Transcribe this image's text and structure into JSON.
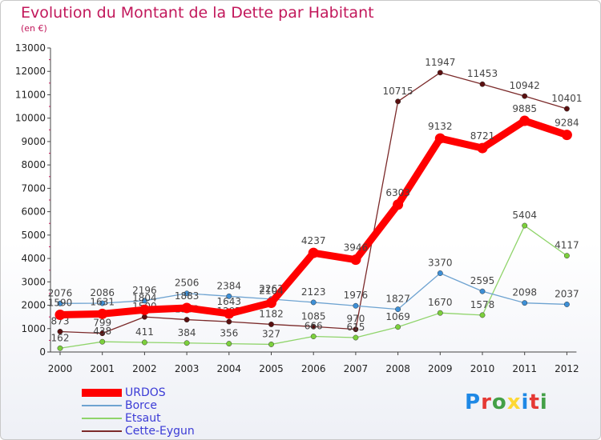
{
  "title": "Evolution du Montant de la Dette par Habitant",
  "subtitle": "(en €)",
  "logo": {
    "text": "Proxiti",
    "letter_colors": [
      "#1e88e5",
      "#e53935",
      "#43a047",
      "#fdd835",
      "#1e88e5",
      "#e53935",
      "#43a047"
    ]
  },
  "chart_data": {
    "type": "line",
    "x": [
      "2000",
      "2001",
      "2002",
      "2003",
      "2004",
      "2005",
      "2006",
      "2007",
      "2008",
      "2009",
      "2010",
      "2011",
      "2012"
    ],
    "y_ticks": [
      "0",
      "1000",
      "2000",
      "3000",
      "4000",
      "5000",
      "6000",
      "7000",
      "8000",
      "9000",
      "10000",
      "11000",
      "12000",
      "13000"
    ],
    "ylim": [
      0,
      13000
    ],
    "grid": false,
    "legend_position": "bottom-left",
    "series": [
      {
        "name": "Cette-Eygun",
        "color": "#7b2a2a",
        "point_color": "#5a1010",
        "values": [
          873,
          799,
          1500,
          1383,
          1297,
          1182,
          1085,
          970,
          10715,
          11947,
          11453,
          10942,
          10401
        ],
        "labels": [
          "873",
          "799",
          "1500",
          "1383",
          "1297",
          "1182",
          "1085",
          "970",
          "10715",
          "11947",
          "11453",
          "10942",
          "10401"
        ]
      },
      {
        "name": "Etsaut",
        "color": "#8fd46a",
        "point_color": "#7cd03c",
        "values": [
          162,
          438,
          411,
          384,
          356,
          327,
          666,
          615,
          1069,
          1670,
          1578,
          5404,
          4117
        ],
        "labels": [
          "162",
          "438",
          "411",
          "384",
          "356",
          "327",
          "666",
          "615",
          "1069",
          "1670",
          "1578",
          "5404",
          "4117"
        ]
      },
      {
        "name": "Borce",
        "color": "#6ea3d1",
        "point_color": "#3d8fd6",
        "values": [
          2076,
          2086,
          2196,
          2506,
          2384,
          2263,
          2123,
          1976,
          1827,
          3370,
          2595,
          2098,
          2037
        ],
        "labels": [
          "2076",
          "2086",
          "2196",
          "2506",
          "2384",
          "2263",
          "2123",
          "1976",
          "1827",
          "3370",
          "2595",
          "2098",
          "2037"
        ]
      },
      {
        "name": "URDOS",
        "color": "#ff0000",
        "point_color": "#ff0000",
        "values": [
          1590,
          1631,
          1804,
          1883,
          1643,
          2104,
          4237,
          3946,
          6303,
          9132,
          8721,
          9885,
          9284
        ],
        "labels": [
          "1590",
          "1631",
          "1804",
          "1883",
          "1643",
          "2104",
          "4237",
          "3946",
          "6303",
          "9132",
          "8721",
          "9885",
          "9284"
        ]
      }
    ],
    "legend": [
      {
        "name": "URDOS",
        "color": "#ff0000"
      },
      {
        "name": "Borce",
        "color": "#6ea3d1"
      },
      {
        "name": "Etsaut",
        "color": "#8fd46a"
      },
      {
        "name": "Cette-Eygun",
        "color": "#7b2a2a"
      }
    ]
  }
}
